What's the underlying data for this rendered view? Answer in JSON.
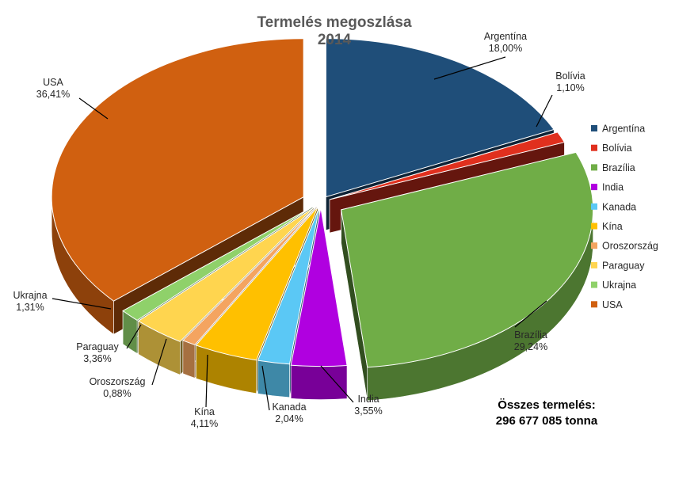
{
  "chart_data": {
    "type": "pie",
    "title": "Termelés megoszlása",
    "subtitle": "2014",
    "slices": [
      {
        "name": "Argentína",
        "value": 18.0,
        "label": "18,00%",
        "color": "#1F4E79"
      },
      {
        "name": "Bolívia",
        "value": 1.1,
        "label": "1,10%",
        "color": "#E0301E"
      },
      {
        "name": "Brazília",
        "value": 29.24,
        "label": "29,24%",
        "color": "#70AD47"
      },
      {
        "name": "India",
        "value": 3.55,
        "label": "3,55%",
        "color": "#B000E0"
      },
      {
        "name": "Kanada",
        "value": 2.04,
        "label": "2,04%",
        "color": "#5BC8F5"
      },
      {
        "name": "Kína",
        "value": 4.11,
        "label": "4,11%",
        "color": "#FFC000"
      },
      {
        "name": "Oroszország",
        "value": 0.88,
        "label": "0,88%",
        "color": "#F4A460"
      },
      {
        "name": "Paraguay",
        "value": 3.36,
        "label": "3,36%",
        "color": "#FFD54F"
      },
      {
        "name": "Ukrajna",
        "value": 1.31,
        "label": "1,31%",
        "color": "#8FD16A"
      },
      {
        "name": "USA",
        "value": 36.41,
        "label": "36,41%",
        "color": "#D06010"
      }
    ],
    "legend_position": "right"
  },
  "total": {
    "label": "Összes termelés:",
    "value": "296 677 085 tonna"
  }
}
